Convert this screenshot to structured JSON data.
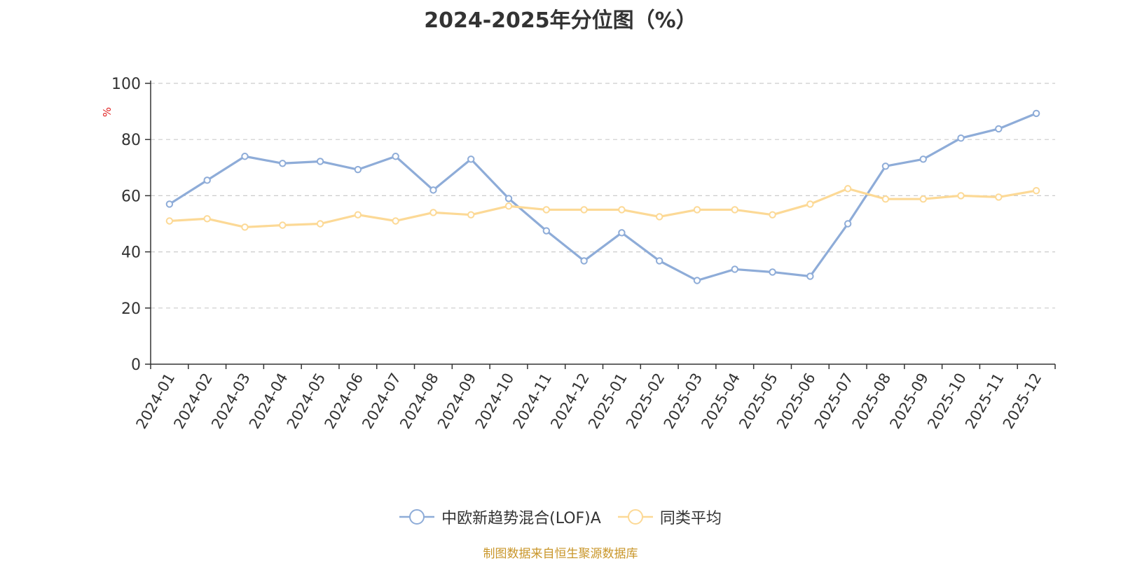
{
  "chart_data": {
    "type": "line",
    "title": "2024-2025年分位图（%）",
    "ylabel": "%",
    "ylim": [
      0,
      100
    ],
    "yticks": [
      0,
      20,
      40,
      60,
      80,
      100
    ],
    "grid": true,
    "legend_position": "bottom",
    "categories": [
      "2024-01",
      "2024-02",
      "2024-03",
      "2024-04",
      "2024-05",
      "2024-06",
      "2024-07",
      "2024-08",
      "2024-09",
      "2024-10",
      "2024-11",
      "2024-12",
      "2025-01",
      "2025-02",
      "2025-03",
      "2025-04",
      "2025-05",
      "2025-06",
      "2025-07",
      "2025-08",
      "2025-09",
      "2025-10",
      "2025-11",
      "2025-12"
    ],
    "series": [
      {
        "name": "中欧新趋势混合(LOF)A",
        "color": "#8eacd8",
        "values": [
          57,
          65.5,
          74,
          71.5,
          72.2,
          69.3,
          74,
          62,
          73,
          59,
          47.5,
          36.8,
          46.8,
          36.8,
          29.8,
          33.8,
          32.8,
          31.3,
          50,
          70.5,
          73,
          80.5,
          83.8,
          89.3
        ]
      },
      {
        "name": "同类平均",
        "color": "#fcd996",
        "values": [
          51,
          51.8,
          48.8,
          49.5,
          50,
          53.2,
          51,
          54,
          53.2,
          56.3,
          55,
          55,
          55,
          52.5,
          55,
          55,
          53.2,
          57,
          62.5,
          58.8,
          58.8,
          60,
          59.5,
          61.8
        ]
      }
    ]
  },
  "source_note": "制图数据来自恒生聚源数据库"
}
